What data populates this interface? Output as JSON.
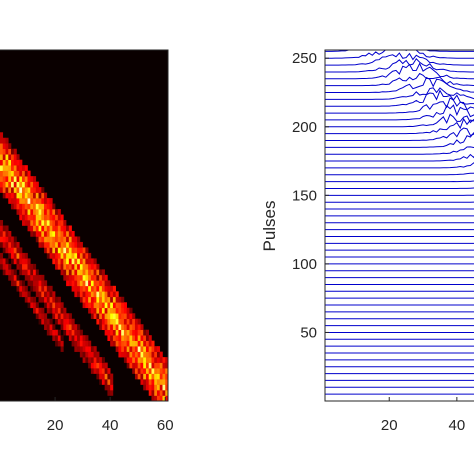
{
  "chart_data": [
    {
      "type": "heatmap",
      "title": "",
      "xlabel": "",
      "ylabel": "",
      "xlim": [
        0,
        61
      ],
      "ylim": [
        0,
        256
      ],
      "x_ticks": [
        20,
        40,
        60
      ],
      "x_tick_labels": [
        "20",
        "40",
        "60"
      ],
      "colormap": "hot",
      "background_color": "#0a0000",
      "bands": [
        {
          "name": "",
          "x_start": 0,
          "y_start": 172,
          "x_end": 61,
          "y_end": 4,
          "width": 22,
          "intensity": 0.9
        },
        {
          "name": "",
          "x_start": 0,
          "y_start": 120,
          "x_end": 40,
          "y_end": 10,
          "width": 10,
          "intensity": 0.55
        },
        {
          "name": "",
          "x_start": 0,
          "y_start": 100,
          "x_end": 22,
          "y_end": 40,
          "width": 6,
          "intensity": 0.45
        }
      ]
    },
    {
      "type": "line",
      "title": "",
      "xlabel": "",
      "ylabel": "Pulses",
      "xlim": [
        1,
        64
      ],
      "ylim": [
        0,
        256
      ],
      "x_ticks": [
        20,
        40
      ],
      "x_tick_labels": [
        "20",
        "40"
      ],
      "y_ticks": [
        50,
        100,
        150,
        200,
        250
      ],
      "y_tick_labels": [
        "50",
        "100",
        "150",
        "200",
        "250"
      ],
      "line_color": "#0000cc",
      "trace_offsets": [
        0,
        5,
        10,
        15,
        20,
        25,
        30,
        35,
        40,
        45,
        50,
        55,
        60,
        65,
        70,
        75,
        80,
        85,
        90,
        95,
        100,
        105,
        110,
        115,
        120,
        125,
        130,
        135,
        140,
        145,
        150,
        155,
        160,
        165,
        170,
        175,
        180,
        185,
        190,
        195,
        200,
        205,
        210,
        215,
        220,
        225,
        230,
        235,
        240,
        245,
        250,
        255
      ],
      "peak_start": {
        "x": 20,
        "y": 255
      },
      "peak_end": {
        "x": 64,
        "y": 140
      },
      "max_amplitude": 9
    }
  ]
}
